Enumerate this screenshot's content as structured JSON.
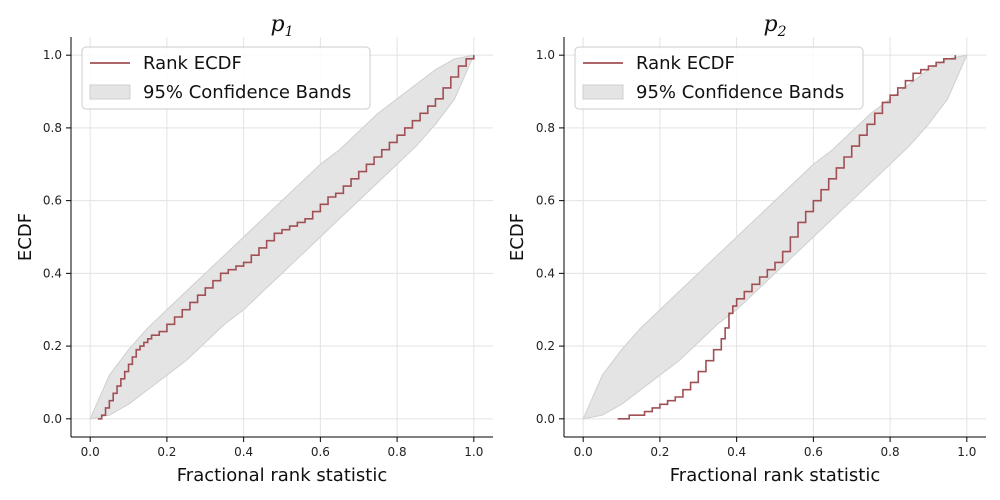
{
  "colors": {
    "ecdf_line": "#a05055",
    "band_fill": "#e4e4e4",
    "band_edge": "#cfcfcf",
    "grid": "#e3e3e3",
    "axis": "#000000"
  },
  "chart_data": [
    {
      "type": "line",
      "title_base": "p",
      "title_sub": "1",
      "xlabel": "Fractional rank statistic",
      "ylabel": "ECDF",
      "xlim": [
        -0.05,
        1.05
      ],
      "ylim": [
        -0.05,
        1.05
      ],
      "xticks": [
        0.0,
        0.2,
        0.4,
        0.6,
        0.8,
        1.0
      ],
      "yticks": [
        0.0,
        0.2,
        0.4,
        0.6,
        0.8,
        1.0
      ],
      "grid": true,
      "legend": {
        "placement": "upper-left",
        "entries": [
          {
            "label": "Rank ECDF",
            "kind": "line"
          },
          {
            "label": "95% Confidence Bands",
            "kind": "patch"
          }
        ]
      },
      "series": [
        {
          "name": "Rank ECDF",
          "kind": "step",
          "x": [
            0.02,
            0.03,
            0.04,
            0.05,
            0.06,
            0.07,
            0.08,
            0.09,
            0.1,
            0.11,
            0.12,
            0.13,
            0.14,
            0.15,
            0.16,
            0.18,
            0.2,
            0.22,
            0.24,
            0.26,
            0.28,
            0.3,
            0.32,
            0.34,
            0.36,
            0.38,
            0.4,
            0.42,
            0.44,
            0.46,
            0.48,
            0.5,
            0.52,
            0.54,
            0.56,
            0.58,
            0.6,
            0.62,
            0.64,
            0.66,
            0.68,
            0.7,
            0.72,
            0.74,
            0.76,
            0.78,
            0.8,
            0.82,
            0.84,
            0.86,
            0.88,
            0.9,
            0.92,
            0.94,
            0.96,
            0.98,
            1.0
          ],
          "y": [
            0.0,
            0.01,
            0.03,
            0.05,
            0.07,
            0.09,
            0.11,
            0.13,
            0.15,
            0.17,
            0.19,
            0.2,
            0.21,
            0.22,
            0.23,
            0.24,
            0.26,
            0.28,
            0.3,
            0.32,
            0.34,
            0.36,
            0.38,
            0.4,
            0.41,
            0.42,
            0.43,
            0.45,
            0.47,
            0.49,
            0.51,
            0.52,
            0.53,
            0.54,
            0.55,
            0.57,
            0.59,
            0.61,
            0.62,
            0.64,
            0.66,
            0.68,
            0.7,
            0.72,
            0.74,
            0.76,
            0.78,
            0.8,
            0.82,
            0.84,
            0.86,
            0.88,
            0.91,
            0.94,
            0.97,
            0.99,
            1.0
          ]
        },
        {
          "name": "95% Confidence Bands",
          "kind": "band",
          "x": [
            0.0,
            0.05,
            0.1,
            0.15,
            0.2,
            0.25,
            0.3,
            0.35,
            0.4,
            0.45,
            0.5,
            0.55,
            0.6,
            0.65,
            0.7,
            0.75,
            0.8,
            0.85,
            0.9,
            0.95,
            1.0
          ],
          "lower": [
            0.0,
            0.01,
            0.04,
            0.08,
            0.12,
            0.16,
            0.21,
            0.26,
            0.3,
            0.35,
            0.4,
            0.45,
            0.5,
            0.55,
            0.6,
            0.65,
            0.7,
            0.75,
            0.81,
            0.88,
            1.0
          ],
          "upper": [
            0.0,
            0.12,
            0.19,
            0.25,
            0.3,
            0.35,
            0.4,
            0.45,
            0.5,
            0.55,
            0.6,
            0.65,
            0.7,
            0.74,
            0.79,
            0.84,
            0.88,
            0.92,
            0.96,
            0.99,
            1.0
          ]
        }
      ]
    },
    {
      "type": "line",
      "title_base": "p",
      "title_sub": "2",
      "xlabel": "Fractional rank statistic",
      "ylabel": "ECDF",
      "xlim": [
        -0.05,
        1.05
      ],
      "ylim": [
        -0.05,
        1.05
      ],
      "xticks": [
        0.0,
        0.2,
        0.4,
        0.6,
        0.8,
        1.0
      ],
      "yticks": [
        0.0,
        0.2,
        0.4,
        0.6,
        0.8,
        1.0
      ],
      "grid": true,
      "legend": {
        "placement": "upper-left",
        "entries": [
          {
            "label": "Rank ECDF",
            "kind": "line"
          },
          {
            "label": "95% Confidence Bands",
            "kind": "patch"
          }
        ]
      },
      "series": [
        {
          "name": "Rank ECDF",
          "kind": "step",
          "x": [
            0.09,
            0.12,
            0.14,
            0.16,
            0.18,
            0.2,
            0.22,
            0.24,
            0.26,
            0.28,
            0.3,
            0.32,
            0.34,
            0.36,
            0.37,
            0.38,
            0.39,
            0.4,
            0.42,
            0.44,
            0.46,
            0.48,
            0.5,
            0.52,
            0.54,
            0.56,
            0.58,
            0.6,
            0.62,
            0.64,
            0.66,
            0.68,
            0.7,
            0.72,
            0.74,
            0.76,
            0.78,
            0.8,
            0.82,
            0.84,
            0.86,
            0.88,
            0.9,
            0.92,
            0.94,
            0.96,
            0.97
          ],
          "y": [
            0.0,
            0.01,
            0.01,
            0.02,
            0.03,
            0.04,
            0.05,
            0.06,
            0.08,
            0.1,
            0.13,
            0.16,
            0.19,
            0.22,
            0.25,
            0.29,
            0.31,
            0.33,
            0.35,
            0.37,
            0.39,
            0.41,
            0.43,
            0.46,
            0.5,
            0.54,
            0.57,
            0.6,
            0.63,
            0.66,
            0.69,
            0.72,
            0.75,
            0.78,
            0.81,
            0.84,
            0.87,
            0.89,
            0.91,
            0.93,
            0.95,
            0.96,
            0.97,
            0.98,
            0.99,
            0.99,
            1.0
          ]
        },
        {
          "name": "95% Confidence Bands",
          "kind": "band",
          "x": [
            0.0,
            0.05,
            0.1,
            0.15,
            0.2,
            0.25,
            0.3,
            0.35,
            0.4,
            0.45,
            0.5,
            0.55,
            0.6,
            0.65,
            0.7,
            0.75,
            0.8,
            0.85,
            0.9,
            0.95,
            1.0
          ],
          "lower": [
            0.0,
            0.01,
            0.04,
            0.08,
            0.12,
            0.16,
            0.21,
            0.26,
            0.3,
            0.35,
            0.4,
            0.45,
            0.5,
            0.55,
            0.6,
            0.65,
            0.7,
            0.75,
            0.81,
            0.88,
            1.0
          ],
          "upper": [
            0.0,
            0.12,
            0.19,
            0.25,
            0.3,
            0.35,
            0.4,
            0.45,
            0.5,
            0.55,
            0.6,
            0.65,
            0.7,
            0.74,
            0.79,
            0.84,
            0.88,
            0.92,
            0.96,
            0.99,
            1.0
          ]
        }
      ]
    }
  ]
}
